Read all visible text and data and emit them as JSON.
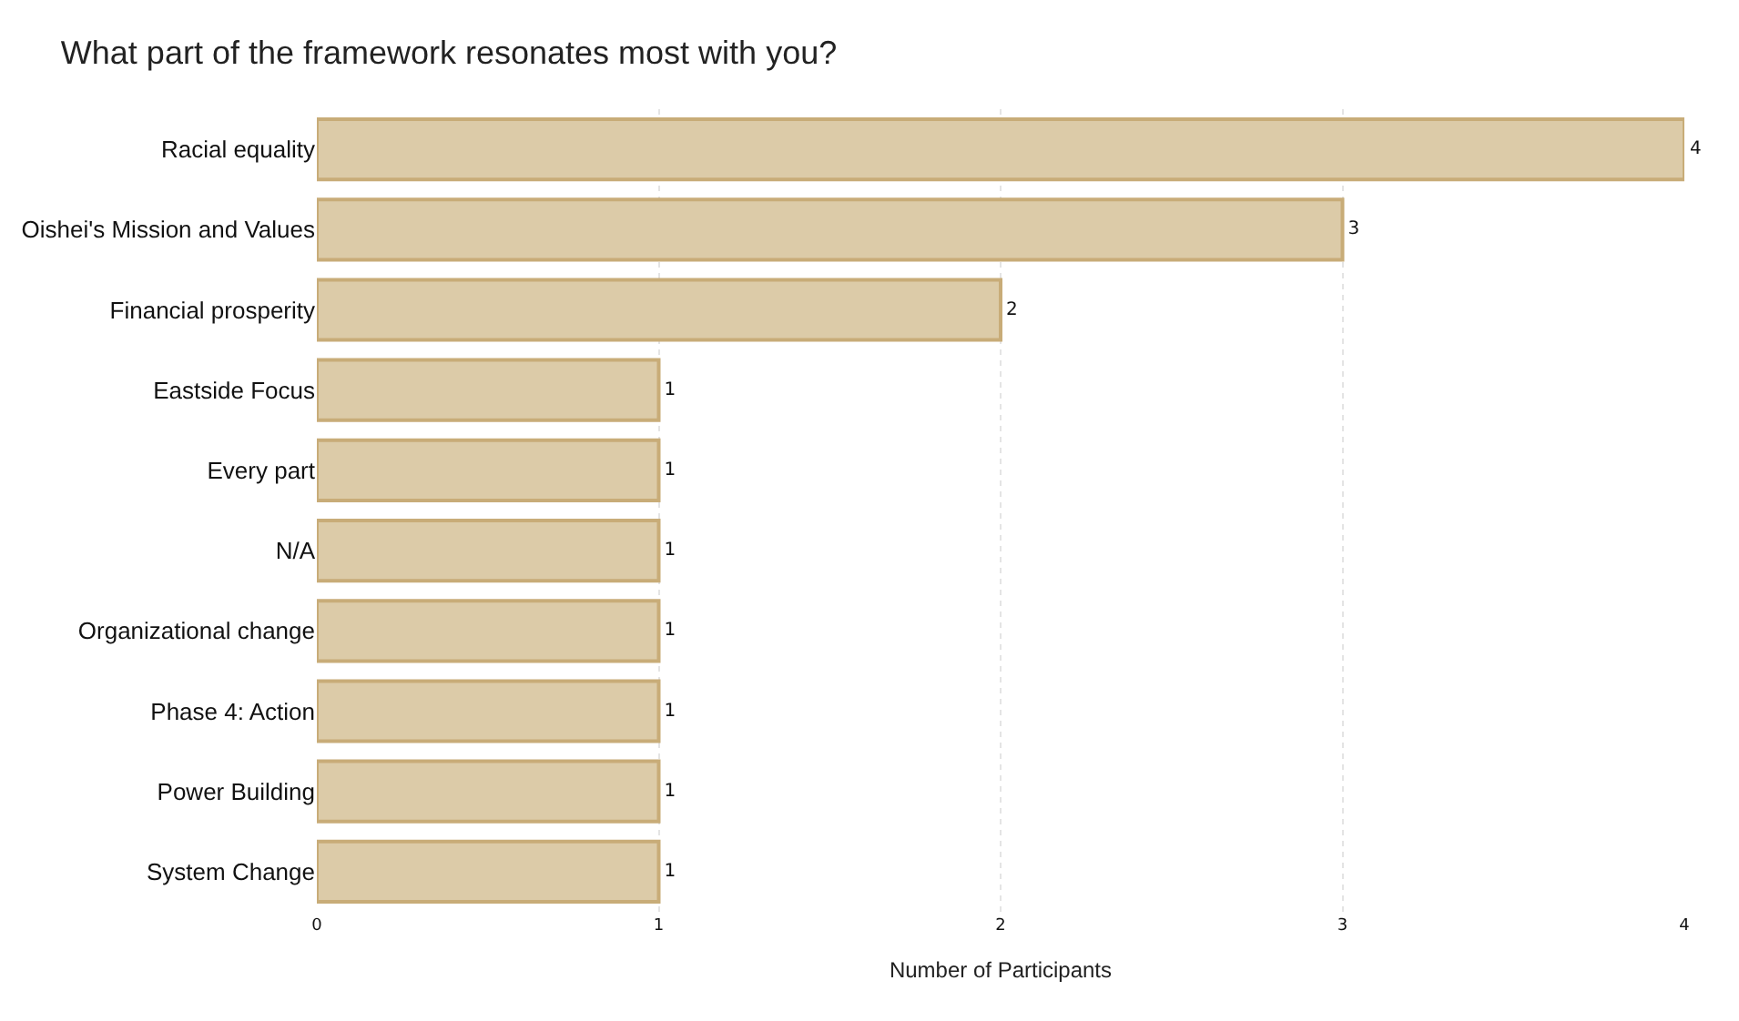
{
  "chart_data": {
    "type": "bar",
    "orientation": "horizontal",
    "title": "What part of the framework resonates most with you?",
    "xlabel": "Number of Participants",
    "categories": [
      "Racial equality",
      "Oishei's Mission and Values",
      "Financial prosperity",
      "Eastside Focus",
      "Every part",
      "N/A",
      "Organizational change",
      "Phase 4: Action",
      "Power Building",
      "System Change"
    ],
    "values": [
      4,
      3,
      2,
      1,
      1,
      1,
      1,
      1,
      1,
      1
    ],
    "color": "#dccba8",
    "xlim": [
      0,
      4
    ],
    "xticks": [
      0,
      1,
      2,
      3,
      4
    ],
    "grid": "x",
    "data_labels": true
  }
}
